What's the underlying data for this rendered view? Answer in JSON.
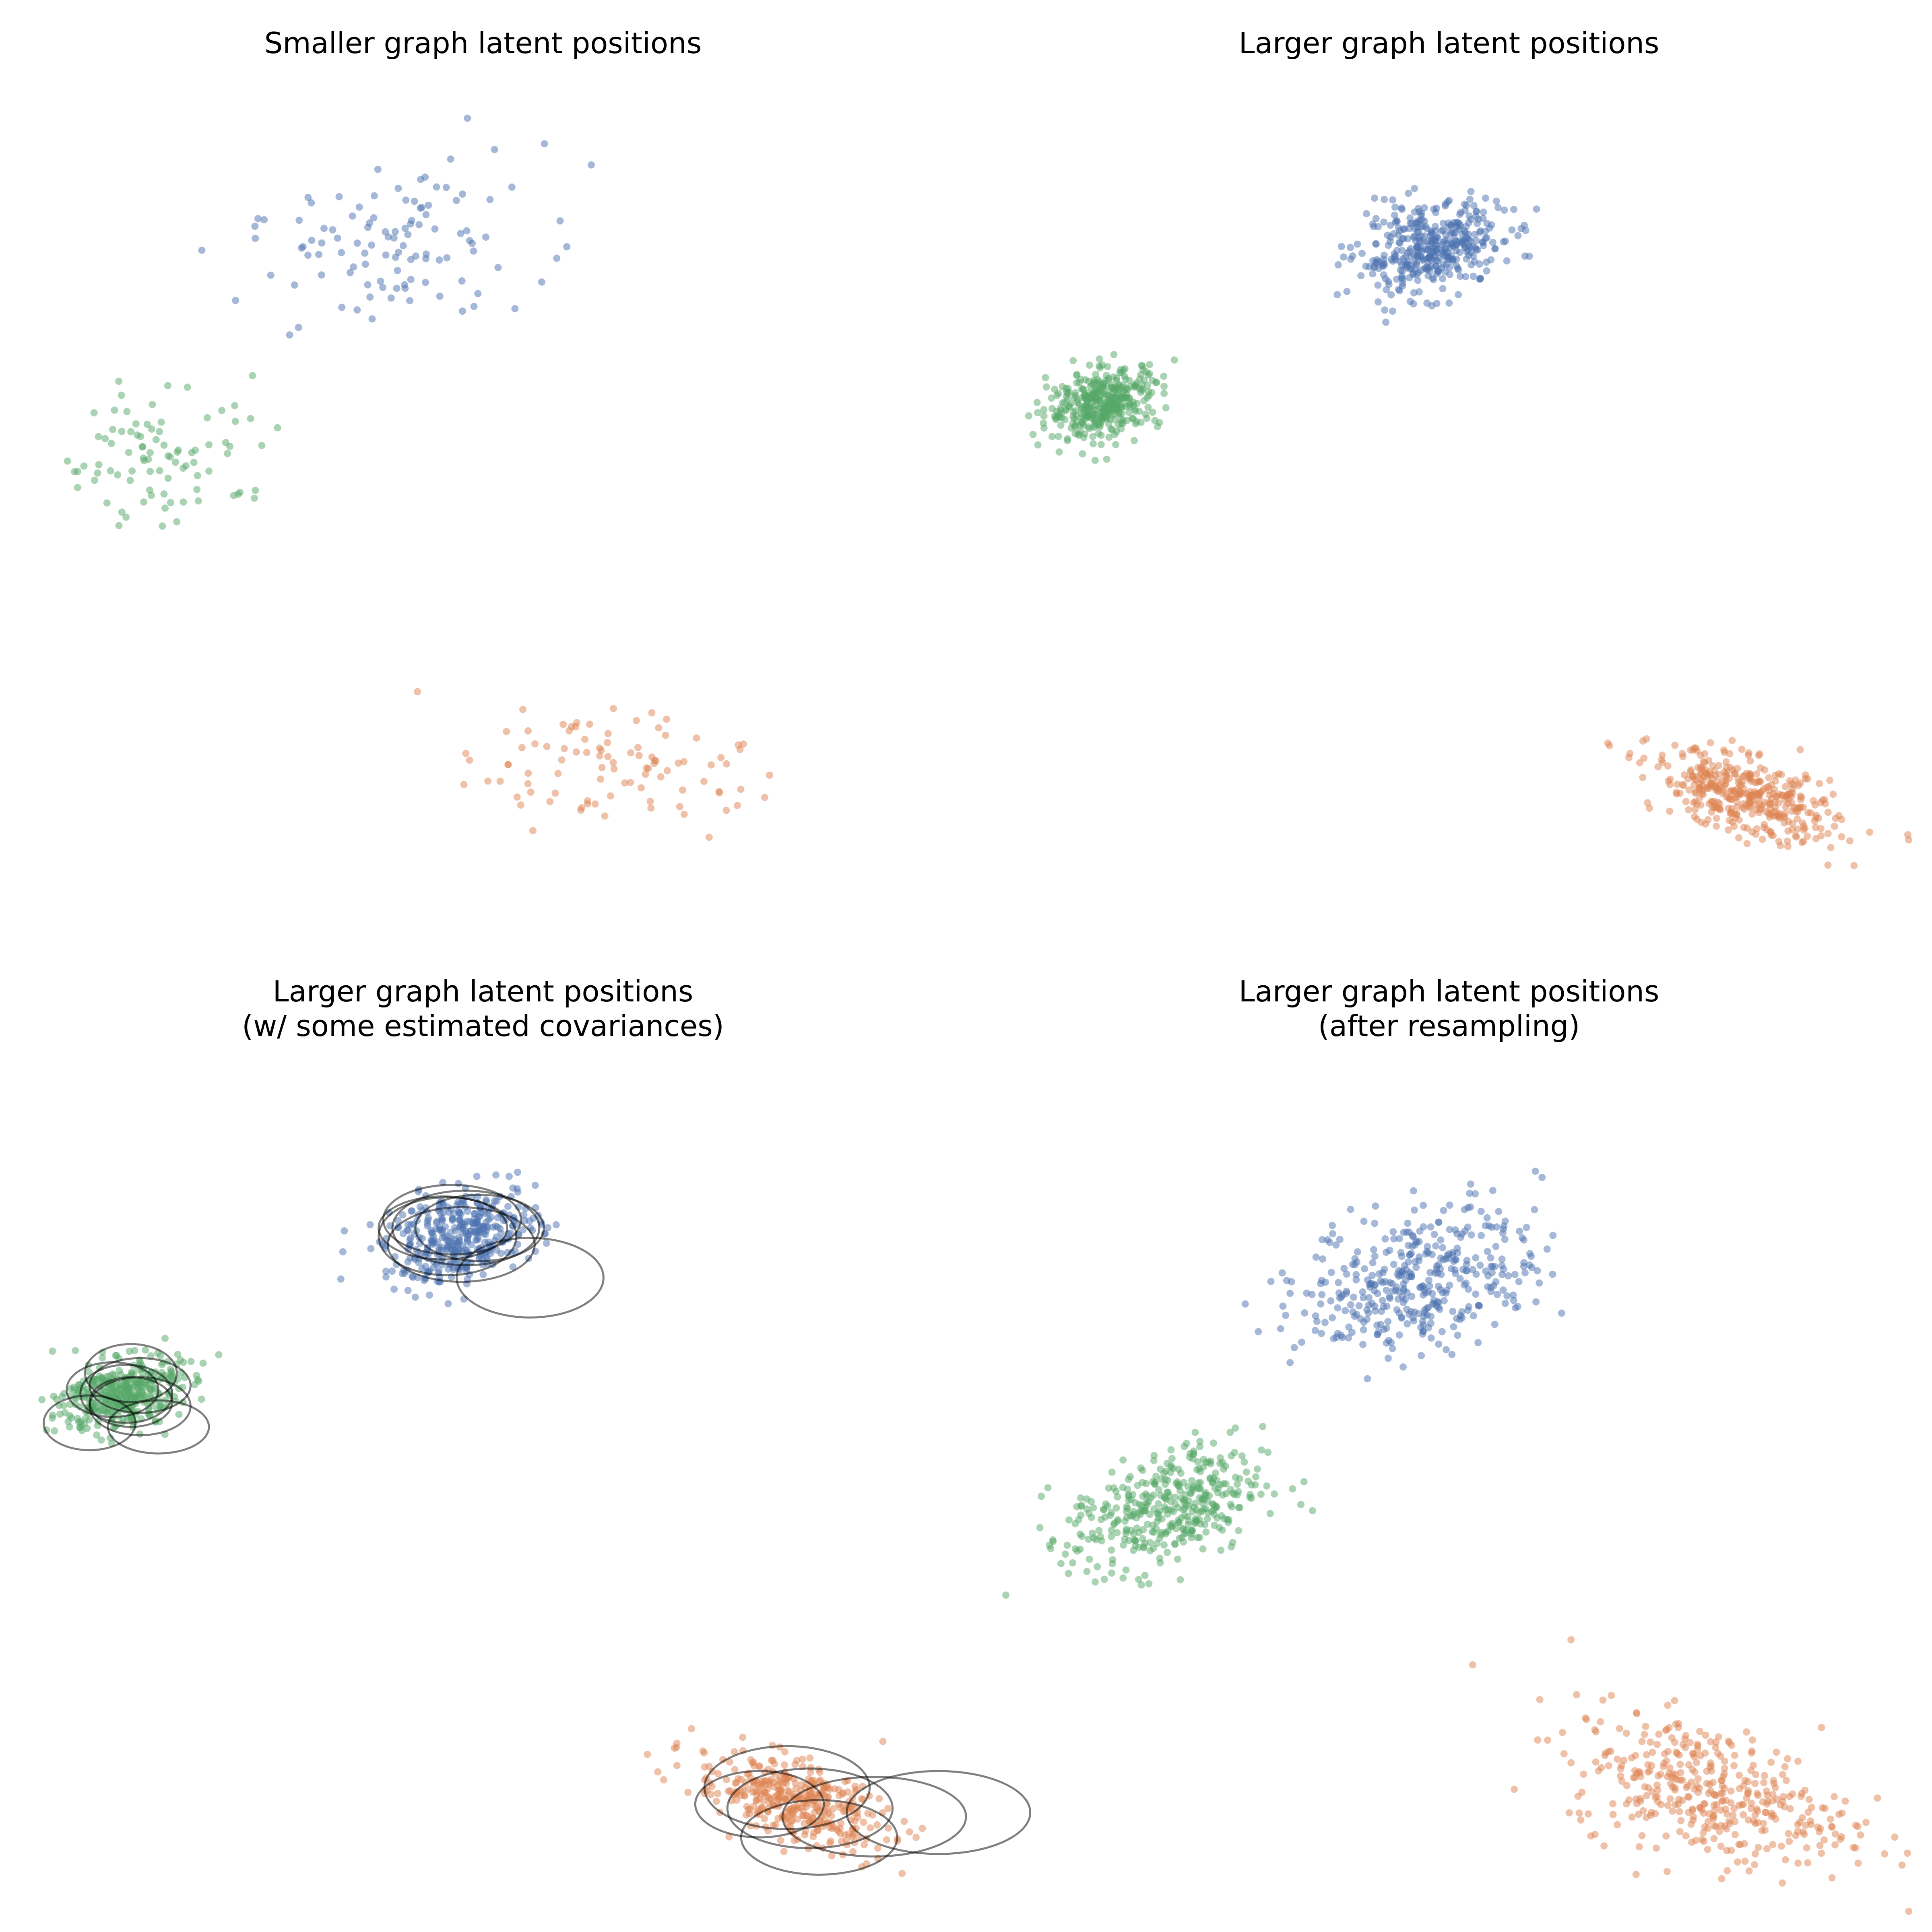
{
  "colors": {
    "blue": "#4c72b0",
    "orange": "#dd8452",
    "green": "#55a868",
    "ellipse": "#000000"
  },
  "chart_data": [
    {
      "type": "scatter",
      "title": "Smaller graph latent positions",
      "subtitle": "",
      "axes": "off",
      "grid": false,
      "legend": "none",
      "xlim": [
        0,
        1
      ],
      "ylim": [
        0,
        1
      ],
      "clusters": [
        {
          "color": "blue",
          "count": 110,
          "center": [
            0.37,
            0.81
          ],
          "spread": [
            0.085,
            0.052
          ],
          "corr": 0.35
        },
        {
          "color": "green",
          "count": 90,
          "center": [
            0.12,
            0.56
          ],
          "spread": [
            0.064,
            0.045
          ],
          "corr": 0.05
        },
        {
          "color": "orange",
          "count": 95,
          "center": [
            0.61,
            0.17
          ],
          "spread": [
            0.078,
            0.04
          ],
          "corr": -0.25
        }
      ]
    },
    {
      "type": "scatter",
      "title": "Larger graph latent positions",
      "subtitle": "",
      "axes": "off",
      "grid": false,
      "legend": "none",
      "xlim": [
        0,
        1
      ],
      "ylim": [
        0,
        1
      ],
      "clusters": [
        {
          "color": "blue",
          "count": 400,
          "center": [
            0.45,
            0.81
          ],
          "spread": [
            0.042,
            0.028
          ],
          "corr": 0.3
        },
        {
          "color": "green",
          "count": 400,
          "center": [
            0.08,
            0.62
          ],
          "spread": [
            0.032,
            0.022
          ],
          "corr": 0.3
        },
        {
          "color": "orange",
          "count": 400,
          "center": [
            0.81,
            0.13
          ],
          "spread": [
            0.052,
            0.028
          ],
          "corr": -0.55
        }
      ]
    },
    {
      "type": "scatter",
      "title": "Larger graph latent positions",
      "subtitle": "(w/ some estimated covariances)",
      "axes": "off",
      "grid": false,
      "legend": "none",
      "xlim": [
        0,
        1
      ],
      "ylim": [
        0,
        1
      ],
      "clusters": [
        {
          "color": "blue",
          "count": 400,
          "center": [
            0.45,
            0.81
          ],
          "spread": [
            0.042,
            0.028
          ],
          "corr": 0.3
        },
        {
          "color": "green",
          "count": 400,
          "center": [
            0.08,
            0.62
          ],
          "spread": [
            0.032,
            0.022
          ],
          "corr": 0.3
        },
        {
          "color": "orange",
          "count": 400,
          "center": [
            0.81,
            0.13
          ],
          "spread": [
            0.052,
            0.028
          ],
          "corr": -0.55
        }
      ],
      "ellipses": [
        {
          "cx": 0.44,
          "cy": 0.83,
          "rx": 0.075,
          "ry": 0.042
        },
        {
          "cx": 0.455,
          "cy": 0.82,
          "rx": 0.08,
          "ry": 0.045
        },
        {
          "cx": 0.47,
          "cy": 0.82,
          "rx": 0.07,
          "ry": 0.04
        },
        {
          "cx": 0.45,
          "cy": 0.8,
          "rx": 0.08,
          "ry": 0.045
        },
        {
          "cx": 0.435,
          "cy": 0.81,
          "rx": 0.075,
          "ry": 0.047
        },
        {
          "cx": 0.43,
          "cy": 0.82,
          "rx": 0.07,
          "ry": 0.038
        },
        {
          "cx": 0.525,
          "cy": 0.76,
          "rx": 0.08,
          "ry": 0.048
        },
        {
          "cx": 0.09,
          "cy": 0.645,
          "rx": 0.05,
          "ry": 0.035
        },
        {
          "cx": 0.1,
          "cy": 0.63,
          "rx": 0.055,
          "ry": 0.033
        },
        {
          "cx": 0.085,
          "cy": 0.62,
          "rx": 0.05,
          "ry": 0.035
        },
        {
          "cx": 0.07,
          "cy": 0.625,
          "rx": 0.05,
          "ry": 0.033
        },
        {
          "cx": 0.09,
          "cy": 0.61,
          "rx": 0.045,
          "ry": 0.03
        },
        {
          "cx": 0.1,
          "cy": 0.605,
          "rx": 0.055,
          "ry": 0.035
        },
        {
          "cx": 0.045,
          "cy": 0.585,
          "rx": 0.05,
          "ry": 0.033
        },
        {
          "cx": 0.12,
          "cy": 0.58,
          "rx": 0.055,
          "ry": 0.032
        },
        {
          "cx": 0.805,
          "cy": 0.145,
          "rx": 0.09,
          "ry": 0.05
        },
        {
          "cx": 0.775,
          "cy": 0.125,
          "rx": 0.07,
          "ry": 0.04
        },
        {
          "cx": 0.83,
          "cy": 0.12,
          "rx": 0.09,
          "ry": 0.048
        },
        {
          "cx": 0.84,
          "cy": 0.085,
          "rx": 0.085,
          "ry": 0.045
        },
        {
          "cx": 0.9,
          "cy": 0.11,
          "rx": 0.1,
          "ry": 0.048
        },
        {
          "cx": 0.97,
          "cy": 0.115,
          "rx": 0.1,
          "ry": 0.05
        }
      ]
    },
    {
      "type": "scatter",
      "title": "Larger graph latent positions",
      "subtitle": "(after resampling)",
      "axes": "off",
      "grid": false,
      "legend": "none",
      "xlim": [
        0,
        1
      ],
      "ylim": [
        0,
        1
      ],
      "clusters": [
        {
          "color": "blue",
          "count": 400,
          "center": [
            0.44,
            0.76
          ],
          "spread": [
            0.068,
            0.045
          ],
          "corr": 0.3
        },
        {
          "color": "green",
          "count": 400,
          "center": [
            0.15,
            0.48
          ],
          "spread": [
            0.055,
            0.038
          ],
          "corr": 0.4
        },
        {
          "color": "orange",
          "count": 400,
          "center": [
            0.77,
            0.14
          ],
          "spread": [
            0.08,
            0.045
          ],
          "corr": -0.45
        }
      ]
    }
  ]
}
